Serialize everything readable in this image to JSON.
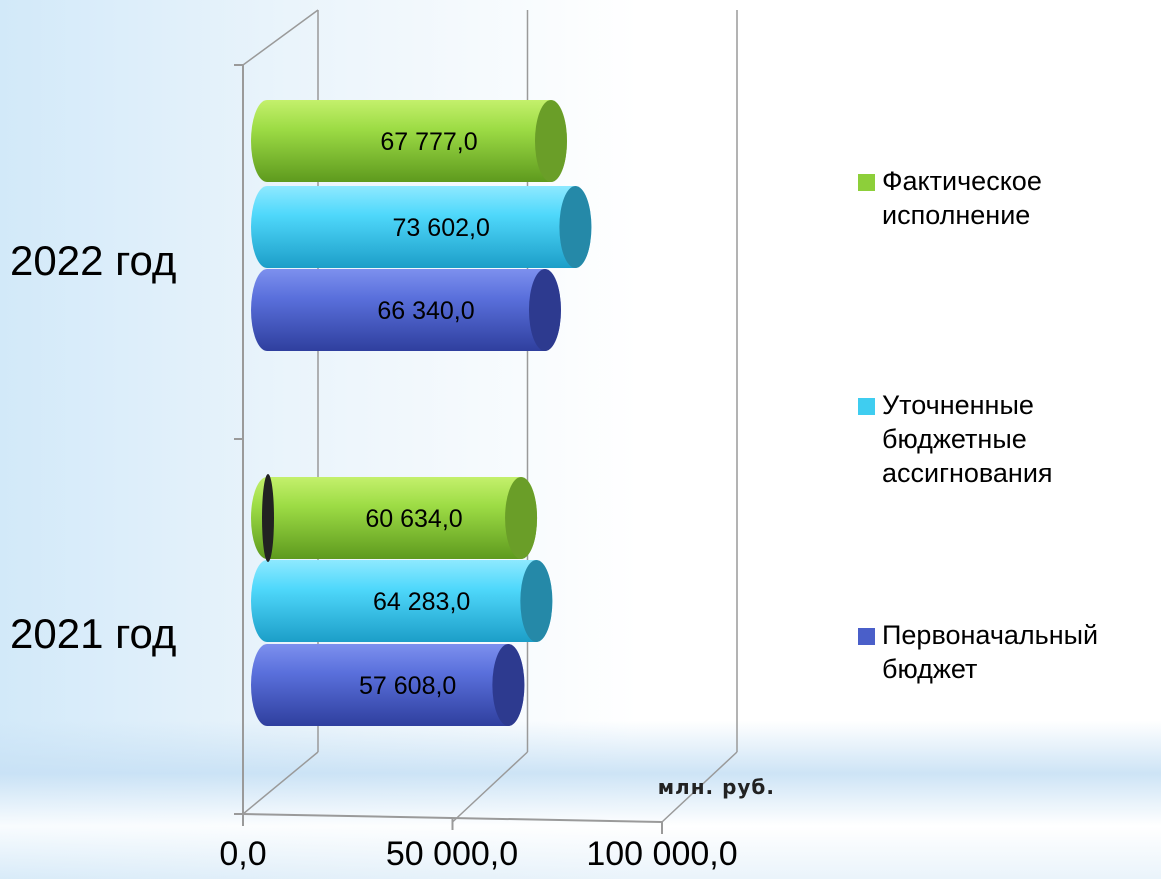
{
  "chart_data": {
    "type": "bar",
    "orientation": "horizontal",
    "style": "3d-cylinder",
    "categories": [
      "2021 год",
      "2022 год"
    ],
    "series": [
      {
        "name": "Первоначальный бюджет",
        "color": "#4a5fc9",
        "values": [
          57608.0,
          66340.0
        ],
        "labels": [
          "57 608,0",
          "66 340,0"
        ]
      },
      {
        "name": "Уточненные бюджетные ассигнования",
        "color": "#3fcdf0",
        "values": [
          64283.0,
          73602.0
        ],
        "labels": [
          "64 283,0",
          "73 602,0"
        ]
      },
      {
        "name": "Фактическое исполнение",
        "color": "#8dcf3a",
        "values": [
          60634.0,
          67777.0
        ],
        "labels": [
          "60 634,0",
          "67 777,0"
        ]
      }
    ],
    "x_ticks": [
      "0,0",
      "50 000,0",
      "100 000,0"
    ],
    "xlim": [
      0,
      100000
    ],
    "unit": "млн. руб.",
    "legend": {
      "position": "right",
      "entries": [
        {
          "lines": [
            "Фактическое",
            "исполнение"
          ],
          "color": "#8dcf3a"
        },
        {
          "lines": [
            "Уточненные",
            "бюджетные",
            "ассигнования"
          ],
          "color": "#3fcdf0"
        },
        {
          "lines": [
            "Первоначальный",
            "бюджет"
          ],
          "color": "#4a5fc9"
        }
      ]
    },
    "grid": true
  }
}
